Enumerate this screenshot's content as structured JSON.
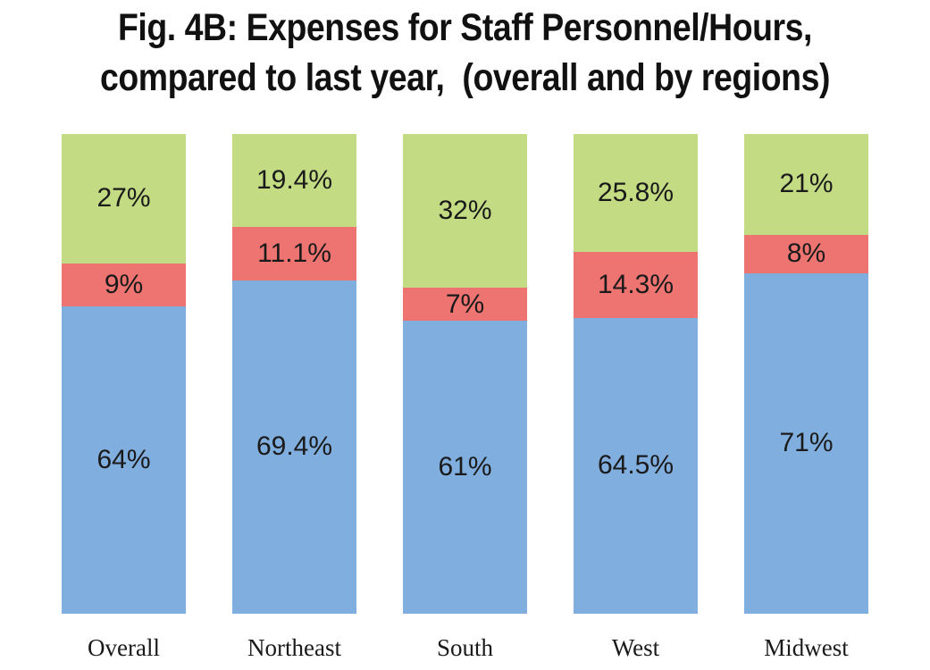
{
  "title_lines": [
    "Fig. 4B: Expenses for Staff Personnel/Hours,",
    "compared to last year,  (overall and by regions)"
  ],
  "colors": {
    "bar_blue": "#80aede",
    "bar_red": "#ed7471",
    "bar_green": "#c3db83",
    "text": "#1a1a1a"
  },
  "chart_data": {
    "type": "bar",
    "stacked": true,
    "title": "Fig. 4B: Expenses for Staff Personnel/Hours, compared to last year, (overall and by regions)",
    "categories": [
      "Overall",
      "Northeast",
      "South",
      "West",
      "Midwest"
    ],
    "series": [
      {
        "name": "blue-bottom-segment",
        "color": "#80aede",
        "values": [
          64,
          69.4,
          61,
          64.5,
          71
        ],
        "labels": [
          "64%",
          "69.4%",
          "61%",
          "64.5%",
          "71%"
        ]
      },
      {
        "name": "red-middle-segment",
        "color": "#ed7471",
        "values": [
          9,
          11.1,
          7,
          14.3,
          8
        ],
        "labels": [
          "9%",
          "11.1%",
          "7%",
          "14.3%",
          "8%"
        ]
      },
      {
        "name": "green-top-segment",
        "color": "#c3db83",
        "values": [
          27,
          19.4,
          32,
          25.8,
          21
        ],
        "labels": [
          "27%",
          "19.4%",
          "32%",
          "25.8%",
          "21%"
        ]
      }
    ],
    "ylim": [
      0,
      100
    ],
    "value_unit": "%",
    "grid": false,
    "legend": "none",
    "xlabel": "",
    "ylabel": ""
  }
}
